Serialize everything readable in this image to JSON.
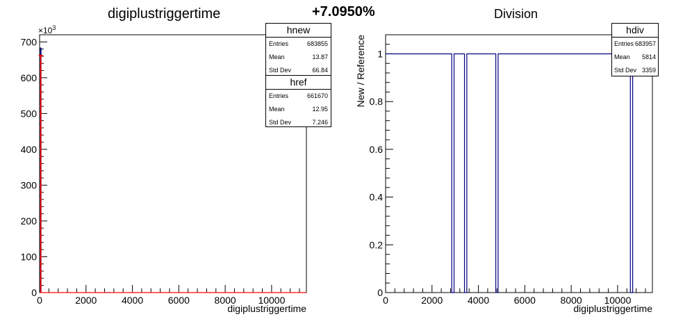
{
  "header": {
    "diff_percent": "+7.0950%"
  },
  "left_panel": {
    "title": "digiplustriggertime",
    "xlabel": "digiplustriggertime",
    "exponent_label": "×10",
    "exponent_power": "3",
    "stats_new": {
      "name": "hnew",
      "rows": [
        {
          "label": "Entries",
          "value": "683855"
        },
        {
          "label": "Mean",
          "value": "13.87"
        },
        {
          "label": "Std Dev",
          "value": "66.84"
        }
      ]
    },
    "stats_ref": {
      "name": "href",
      "rows": [
        {
          "label": "Entries",
          "value": "661670"
        },
        {
          "label": "Mean",
          "value": "12.95"
        },
        {
          "label": "Std Dev",
          "value": "7.246"
        }
      ]
    }
  },
  "right_panel": {
    "title": "Division",
    "xlabel": "digiplustriggertime",
    "ylabel": "New / Reference",
    "stats": {
      "name": "hdiv",
      "rows": [
        {
          "label": "Entries",
          "value": "683957"
        },
        {
          "label": "Mean",
          "value": "5814"
        },
        {
          "label": "Std Dev",
          "value": "3359"
        }
      ]
    }
  },
  "colors": {
    "new": "#000080",
    "ref": "#ff0000",
    "division": "#000080",
    "axis": "#000000"
  },
  "chart_data": [
    {
      "type": "bar",
      "title": "digiplustriggertime",
      "xlabel": "digiplustriggertime",
      "ylabel": "",
      "xlim": [
        0,
        11500
      ],
      "ylim": [
        0,
        720
      ],
      "y_unit_multiplier": 1000,
      "xticks": [
        "0",
        "2000",
        "4000",
        "6000",
        "8000",
        "10000"
      ],
      "yticks": [
        "0",
        "100",
        "200",
        "300",
        "400",
        "500",
        "600",
        "700"
      ],
      "series": [
        {
          "name": "hnew",
          "points": [
            [
              50,
              684
            ],
            [
              2900,
              1
            ],
            [
              3000,
              1
            ]
          ]
        },
        {
          "name": "href",
          "points": [
            [
              50,
              662
            ]
          ]
        }
      ]
    },
    {
      "type": "line",
      "title": "Division",
      "xlabel": "digiplustriggertime",
      "ylabel": "New / Reference",
      "xlim": [
        0,
        11500
      ],
      "ylim": [
        0,
        1.08
      ],
      "xticks": [
        "0",
        "2000",
        "4000",
        "6000",
        "8000",
        "10000"
      ],
      "yticks": [
        "0",
        "0.2",
        "0.4",
        "0.6",
        "0.8",
        "1"
      ],
      "series": [
        {
          "name": "hdiv",
          "step_points": [
            [
              0,
              1
            ],
            [
              2850,
              1
            ],
            [
              2850,
              0
            ],
            [
              2950,
              0
            ],
            [
              2950,
              1
            ],
            [
              3400,
              1
            ],
            [
              3400,
              0
            ],
            [
              3500,
              0
            ],
            [
              3500,
              1
            ],
            [
              4750,
              1
            ],
            [
              4750,
              0
            ],
            [
              4850,
              0
            ],
            [
              4850,
              1
            ],
            [
              10550,
              1
            ],
            [
              10550,
              0
            ],
            [
              10650,
              0
            ],
            [
              10650,
              1
            ],
            [
              11500,
              1
            ]
          ]
        }
      ]
    }
  ]
}
